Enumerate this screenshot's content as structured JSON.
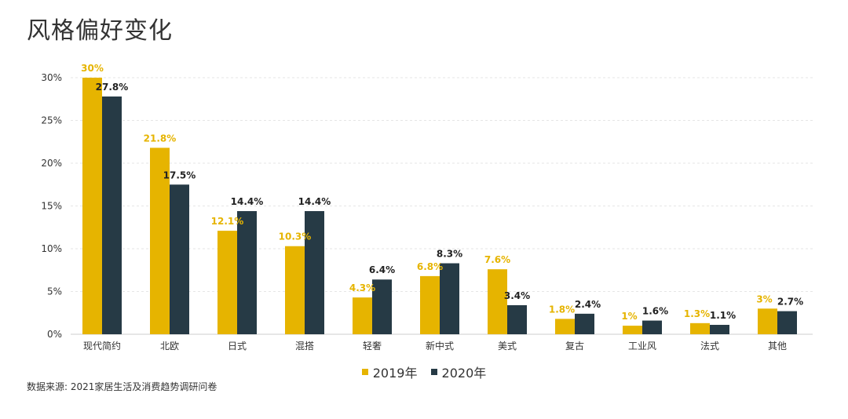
{
  "page": {
    "title": "风格偏好变化",
    "source": "数据来源: 2021家居生活及消费趋势调研问卷"
  },
  "colors": {
    "series_2019": "#e6b400",
    "series_2020": "#263a45"
  },
  "chart_data": {
    "type": "bar",
    "title": "风格偏好变化",
    "categories": [
      "现代简约",
      "北欧",
      "日式",
      "混搭",
      "轻奢",
      "新中式",
      "美式",
      "复古",
      "工业风",
      "法式",
      "其他"
    ],
    "series": [
      {
        "name": "2019年",
        "values": [
          30,
          21.8,
          12.1,
          10.3,
          4.3,
          6.8,
          7.6,
          1.8,
          1,
          1.3,
          3
        ],
        "labels": [
          "30%",
          "21.8%",
          "12.1%",
          "10.3%",
          "4.3%",
          "6.8%",
          "7.6%",
          "1.8%",
          "1%",
          "1.3%",
          "3%"
        ]
      },
      {
        "name": "2020年",
        "values": [
          27.8,
          17.5,
          14.4,
          14.4,
          6.4,
          8.3,
          3.4,
          2.4,
          1.6,
          1.1,
          2.7
        ],
        "labels": [
          "27.8%",
          "17.5%",
          "14.4%",
          "14.4%",
          "6.4%",
          "8.3%",
          "3.4%",
          "2.4%",
          "1.6%",
          "1.1%",
          "2.7%"
        ]
      }
    ],
    "yticks": [
      "0%",
      "5%",
      "10%",
      "15%",
      "20%",
      "25%",
      "30%"
    ],
    "ylim": [
      0,
      30
    ],
    "grid": true,
    "legend": "bottom"
  }
}
